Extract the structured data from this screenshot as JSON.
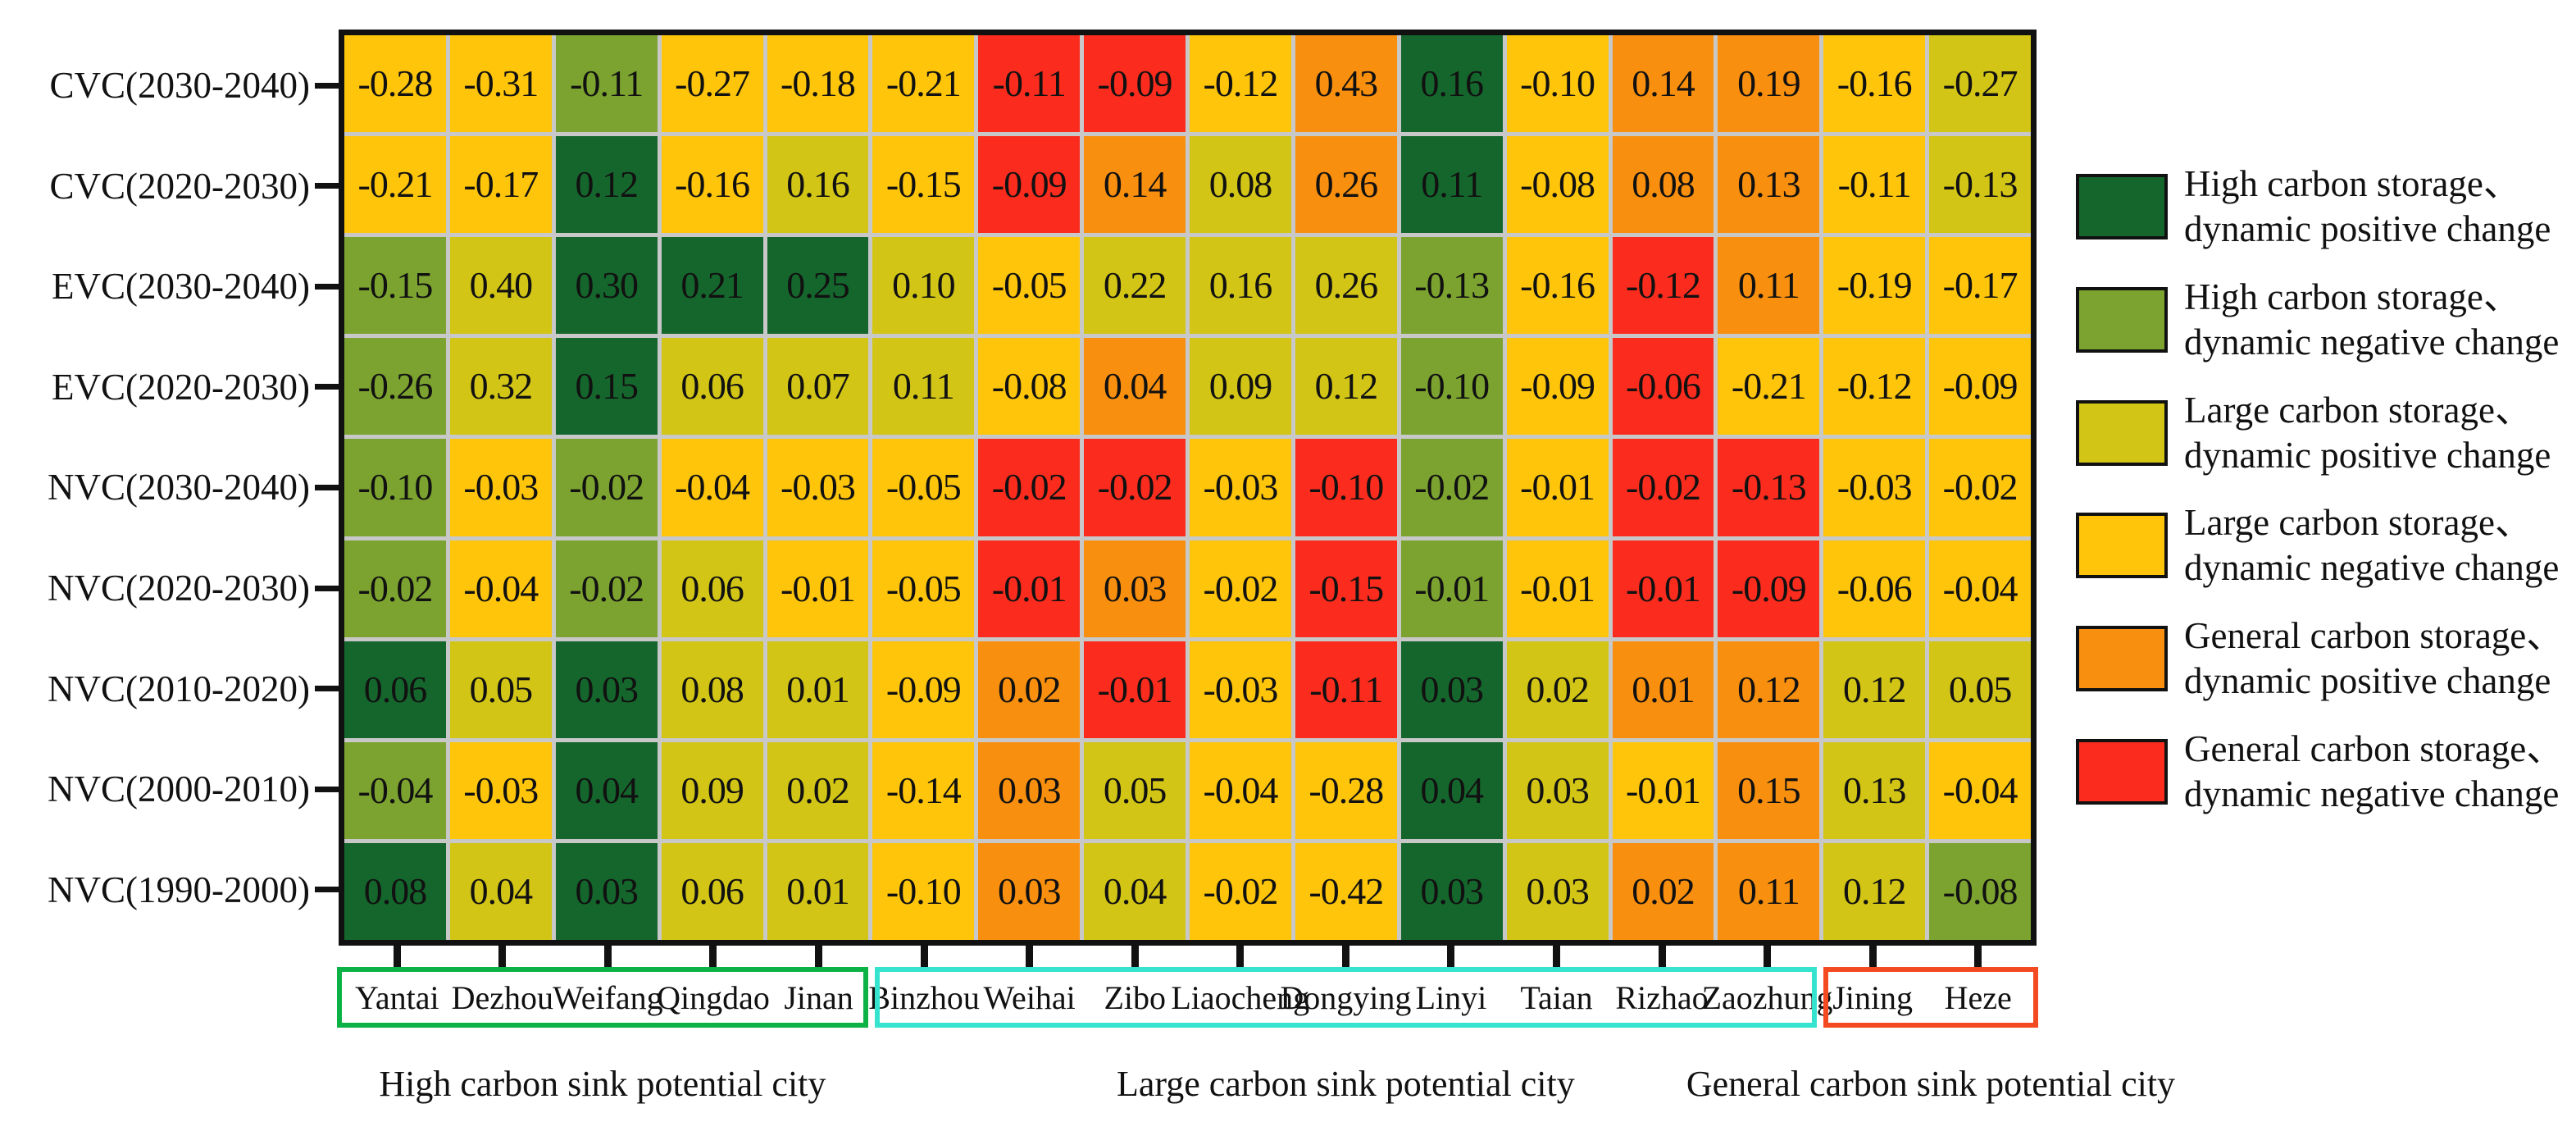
{
  "chart_data": {
    "type": "heatmap",
    "title": "",
    "xlabel": "",
    "ylabel": "",
    "rows": [
      "CVC(2030-2040)",
      "CVC(2020-2030)",
      "EVC(2030-2040)",
      "EVC(2020-2030)",
      "NVC(2030-2040)",
      "NVC(2020-2030)",
      "NVC(2010-2020)",
      "NVC(2000-2010)",
      "NVC(1990-2000)"
    ],
    "columns": [
      "Yantai",
      "Dezhou",
      "Weifang",
      "Qingdao",
      "Jinan",
      "Binzhou",
      "Weihai",
      "Zibo",
      "Liaocheng",
      "Dongying",
      "Linyi",
      "Taian",
      "Rizhao",
      "Zaozhung",
      "Jining",
      "Heze"
    ],
    "values": [
      [
        -0.28,
        -0.31,
        -0.11,
        -0.27,
        -0.18,
        -0.21,
        -0.11,
        -0.09,
        -0.12,
        0.43,
        0.16,
        -0.1,
        0.14,
        0.19,
        -0.16,
        -0.27
      ],
      [
        -0.21,
        -0.17,
        0.12,
        -0.16,
        0.16,
        -0.15,
        -0.09,
        0.14,
        0.08,
        0.26,
        0.11,
        -0.08,
        0.08,
        0.13,
        -0.11,
        -0.13
      ],
      [
        -0.15,
        0.4,
        0.3,
        0.21,
        0.25,
        0.1,
        -0.05,
        0.22,
        0.16,
        0.26,
        -0.13,
        -0.16,
        -0.12,
        0.11,
        -0.19,
        -0.17
      ],
      [
        -0.26,
        0.32,
        0.15,
        0.06,
        0.07,
        0.11,
        -0.08,
        0.04,
        0.09,
        0.12,
        -0.1,
        -0.09,
        -0.06,
        -0.21,
        -0.12,
        -0.09
      ],
      [
        -0.1,
        -0.03,
        -0.02,
        -0.04,
        -0.03,
        -0.05,
        -0.02,
        -0.02,
        -0.03,
        -0.1,
        -0.02,
        -0.01,
        -0.02,
        -0.13,
        -0.03,
        -0.02
      ],
      [
        -0.02,
        -0.04,
        -0.02,
        0.06,
        -0.01,
        -0.05,
        -0.01,
        0.03,
        -0.02,
        -0.15,
        -0.01,
        -0.01,
        -0.01,
        -0.09,
        -0.06,
        -0.04
      ],
      [
        0.06,
        0.05,
        0.03,
        0.08,
        0.01,
        -0.09,
        0.02,
        -0.01,
        -0.03,
        -0.11,
        0.03,
        0.02,
        0.01,
        0.12,
        0.12,
        0.05
      ],
      [
        -0.04,
        -0.03,
        0.04,
        0.09,
        0.02,
        -0.14,
        0.03,
        0.05,
        -0.04,
        -0.28,
        0.04,
        0.03,
        -0.01,
        0.15,
        0.13,
        -0.04
      ],
      [
        0.08,
        0.04,
        0.03,
        0.06,
        0.01,
        -0.1,
        0.03,
        0.04,
        -0.02,
        -0.42,
        0.03,
        0.03,
        0.02,
        0.11,
        0.12,
        -0.08
      ]
    ],
    "cell_categories": [
      [
        "LN",
        "LN",
        "HN",
        "LN",
        "LN",
        "LN",
        "GN",
        "GN",
        "LN",
        "GP",
        "HP",
        "LN",
        "GP",
        "GP",
        "LN",
        "LP"
      ],
      [
        "LN",
        "LN",
        "HP",
        "LN",
        "LP",
        "LN",
        "GN",
        "GP",
        "LP",
        "GP",
        "HP",
        "LN",
        "GP",
        "GP",
        "LN",
        "LP"
      ],
      [
        "HN",
        "LP",
        "HP",
        "HP",
        "HP",
        "LP",
        "LN",
        "LP",
        "LP",
        "LP",
        "HN",
        "LN",
        "GN",
        "GP",
        "LN",
        "LN"
      ],
      [
        "HN",
        "LP",
        "HP",
        "LP",
        "LP",
        "LP",
        "LN",
        "GP",
        "LP",
        "LP",
        "HN",
        "LN",
        "GN",
        "LN",
        "LN",
        "LN"
      ],
      [
        "HN",
        "LN",
        "HN",
        "LN",
        "LN",
        "LN",
        "GN",
        "GN",
        "LN",
        "GN",
        "HN",
        "LN",
        "GN",
        "GN",
        "LN",
        "LN"
      ],
      [
        "HN",
        "LN",
        "HN",
        "LP",
        "LN",
        "LN",
        "GN",
        "GP",
        "LN",
        "GN",
        "HN",
        "LN",
        "GN",
        "GN",
        "LN",
        "LN"
      ],
      [
        "HP",
        "LP",
        "HP",
        "LP",
        "LP",
        "LN",
        "GP",
        "GN",
        "LN",
        "GN",
        "HP",
        "LP",
        "GP",
        "GP",
        "LP",
        "LP"
      ],
      [
        "HN",
        "LN",
        "HP",
        "LP",
        "LP",
        "LN",
        "GP",
        "LP",
        "LN",
        "LN",
        "HP",
        "LP",
        "LN",
        "GP",
        "LP",
        "LN"
      ],
      [
        "HP",
        "LP",
        "HP",
        "LP",
        "LP",
        "LN",
        "GP",
        "LP",
        "LN",
        "LN",
        "HP",
        "LP",
        "GP",
        "GP",
        "LP",
        "HN"
      ]
    ],
    "palette": {
      "HP": "#15662C",
      "HN": "#7CA32F",
      "LP": "#D2C516",
      "LN": "#FEC50B",
      "GP": "#F98F0E",
      "GN": "#FB2C1E"
    },
    "legend": [
      {
        "key": "HP",
        "lines": [
          "High carbon storage、",
          "dynamic positive change"
        ]
      },
      {
        "key": "HN",
        "lines": [
          "High carbon storage、",
          "dynamic negative change"
        ]
      },
      {
        "key": "LP",
        "lines": [
          "Large carbon storage、",
          "dynamic positive change"
        ]
      },
      {
        "key": "LN",
        "lines": [
          "Large carbon storage、",
          "dynamic negative change"
        ]
      },
      {
        "key": "GP",
        "lines": [
          "General carbon storage、",
          "dynamic positive change"
        ]
      },
      {
        "key": "GN",
        "lines": [
          "General carbon storage、",
          "dynamic negative change"
        ]
      }
    ],
    "city_groups": [
      {
        "caption": "High carbon sink potential city",
        "cities": [
          "Yantai",
          "Dezhou",
          "Weifang",
          "Qingdao",
          "Jinan"
        ],
        "box_color": "#0CB246",
        "col_start": 0,
        "col_end": 4
      },
      {
        "caption": "Large carbon sink potential city",
        "cities": [
          "Binzhou",
          "Weihai",
          "Zibo",
          "Liaocheng",
          "Dongying",
          "Linyi",
          "Taian",
          "Rizhao",
          "Zaozhung"
        ],
        "box_color": "#35E3CE",
        "col_start": 5,
        "col_end": 13
      },
      {
        "caption": "General carbon sink potential city",
        "cities": [
          "Jining",
          "Heze"
        ],
        "box_color": "#F44A22",
        "col_start": 14,
        "col_end": 15
      }
    ],
    "grid_line_color": "#C8C8C8",
    "border_color": "#111111",
    "layout_hints": {
      "legend_position": "right",
      "grid": "on",
      "value_labels": "on"
    }
  }
}
